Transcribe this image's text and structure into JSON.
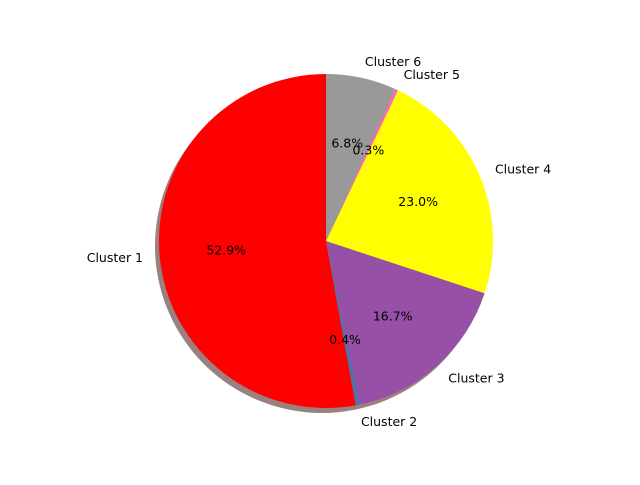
{
  "chart_data": {
    "type": "pie",
    "title": "",
    "shadow": true,
    "start_angle_deg": 90,
    "direction": "counterclockwise",
    "slices": [
      {
        "label": "Cluster 1",
        "value": 52.9,
        "pct_label": "52.9%",
        "color": "#ff0000"
      },
      {
        "label": "Cluster 2",
        "value": 0.4,
        "pct_label": "0.4%",
        "color": "#4c72b0"
      },
      {
        "label": "Cluster 3",
        "value": 16.7,
        "pct_label": "16.7%",
        "color": "#9650a6"
      },
      {
        "label": "Cluster 4",
        "value": 23.0,
        "pct_label": "23.0%",
        "color": "#ffff00"
      },
      {
        "label": "Cluster 5",
        "value": 0.3,
        "pct_label": "0.3%",
        "color": "#ff69b4"
      },
      {
        "label": "Cluster 6",
        "value": 6.8,
        "pct_label": "6.8%",
        "color": "#999999"
      }
    ]
  }
}
